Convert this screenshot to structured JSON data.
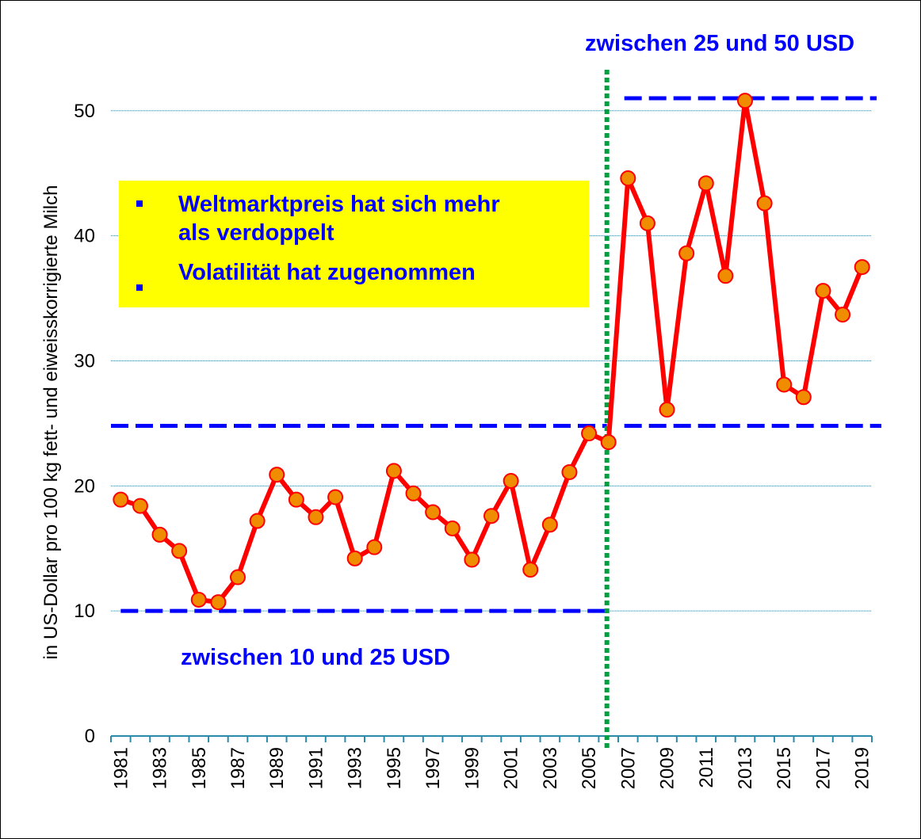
{
  "chart_data": {
    "type": "line",
    "y_label": "in US-Dollar pro 100 kg fett- und eiweisskorrigierte Milch",
    "categories": [
      "1981",
      null,
      "1983",
      null,
      "1985",
      null,
      "1987",
      null,
      "1989",
      null,
      "1991",
      null,
      "1993",
      null,
      "1995",
      null,
      "1997",
      null,
      "1999",
      null,
      "2001",
      null,
      "2003",
      null,
      "2005",
      null,
      "2007",
      null,
      "2009",
      null,
      "2011",
      null,
      "2013",
      null,
      "2015",
      null,
      "2017",
      null,
      "2019"
    ],
    "series": [
      {
        "color": "#ff0000",
        "marker_color": "#f08c00",
        "values": [
          18.9,
          18.4,
          16.1,
          14.8,
          10.9,
          10.7,
          12.7,
          17.2,
          20.9,
          18.9,
          17.5,
          19.1,
          14.2,
          15.1,
          21.2,
          19.4,
          17.9,
          16.6,
          14.1,
          17.6,
          20.4,
          13.3,
          16.9,
          21.1,
          24.2,
          23.5,
          44.6,
          41.0,
          26.1,
          38.6,
          44.2,
          36.8,
          50.8,
          42.6,
          28.1,
          27.1,
          35.6,
          33.7,
          37.5
        ]
      }
    ],
    "ylim": [
      0,
      55.5
    ],
    "yticks": [
      0,
      10,
      20,
      30,
      40,
      50
    ],
    "grid": true,
    "hlines": [
      {
        "value": 10,
        "color": "#0000ff"
      },
      {
        "value": 24.8,
        "color": "#0000ff"
      },
      {
        "value": 51,
        "color": "#0000ff"
      }
    ],
    "vline_color": "#00a040",
    "annotations": [
      "zwischen 25 und 50 USD",
      "zwischen 10 und 25 USD"
    ],
    "callout": {
      "bullets": [
        "Weltmarktpreis hat sich mehr als verdoppelt",
        "Volatilität hat zugenommen"
      ]
    }
  }
}
